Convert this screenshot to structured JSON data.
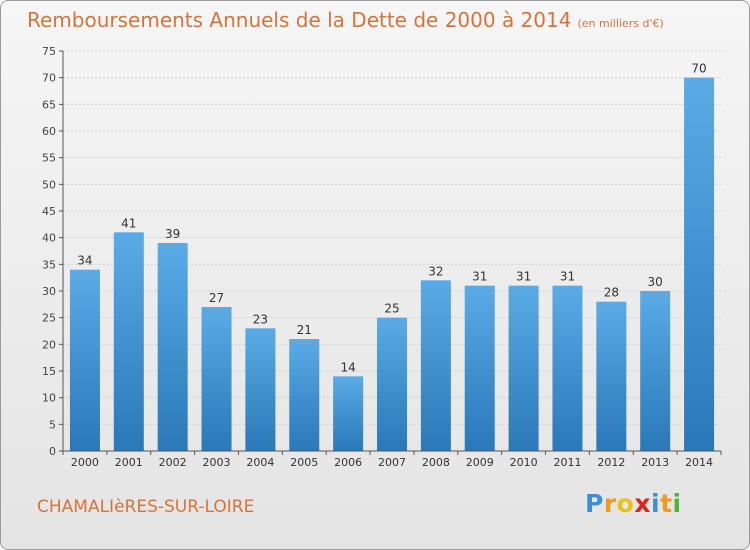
{
  "title": "Remboursements Annuels de la Dette de 2000 à 2014",
  "unit_note": "(en milliers d'€)",
  "commune": "CHAMALIèRES-SUR-LOIRE",
  "logo": {
    "letters": [
      "P",
      "r",
      "o",
      "x",
      "i",
      "t",
      "i"
    ],
    "colors": [
      "#3d8ed8",
      "#f09a1e",
      "#e8c21a",
      "#e0231d",
      "#3d8ed8",
      "#f09a1e",
      "#4fb53a"
    ]
  },
  "colors": {
    "bar_top": "#5aabe6",
    "bar_bottom": "#2a78b8",
    "accent": "#d8733a"
  },
  "chart_data": {
    "type": "bar",
    "categories": [
      "2000",
      "2001",
      "2002",
      "2003",
      "2004",
      "2005",
      "2006",
      "2007",
      "2008",
      "2009",
      "2010",
      "2011",
      "2012",
      "2013",
      "2014"
    ],
    "values": [
      34,
      41,
      39,
      27,
      23,
      21,
      14,
      25,
      32,
      31,
      31,
      31,
      28,
      30,
      70
    ],
    "ylim": [
      0,
      75
    ],
    "yticks": [
      0,
      5,
      10,
      15,
      20,
      25,
      30,
      35,
      40,
      45,
      50,
      55,
      60,
      65,
      70,
      75
    ],
    "grid": true,
    "data_labels": true
  }
}
